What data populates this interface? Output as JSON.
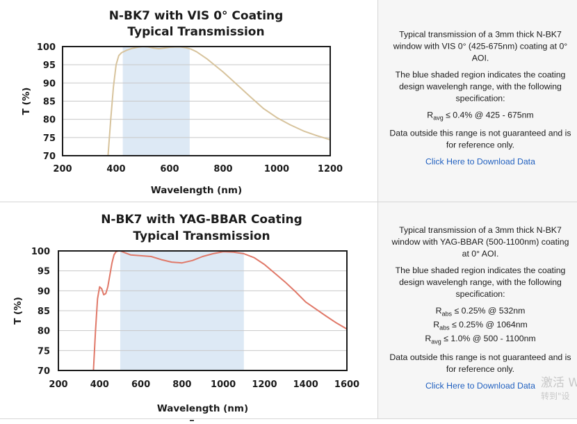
{
  "chart_data": [
    {
      "type": "line",
      "title": "N-BK7 with VIS 0° Coating",
      "subtitle": "Typical Transmission",
      "xlabel": "Wavelength (nm)",
      "ylabel": "T (%)",
      "xlim": [
        200,
        1200
      ],
      "ylim": [
        70,
        100
      ],
      "xticks": [
        "200",
        "400",
        "600",
        "800",
        "1000",
        "1200"
      ],
      "yticks": [
        "70",
        "75",
        "80",
        "85",
        "90",
        "95",
        "100"
      ],
      "grid": true,
      "shaded_range": [
        425,
        675
      ],
      "series": [
        {
          "color": "#d7c39c",
          "x": [
            370,
            380,
            390,
            400,
            410,
            420,
            440,
            460,
            480,
            500,
            520,
            540,
            560,
            580,
            600,
            620,
            640,
            660,
            680,
            700,
            720,
            740,
            760,
            780,
            800,
            830,
            860,
            900,
            950,
            1000,
            1050,
            1100,
            1150,
            1200
          ],
          "y": [
            70,
            80,
            89,
            95,
            97.5,
            98.3,
            99,
            99.5,
            99.8,
            100,
            99.9,
            99.6,
            99.4,
            99.6,
            99.8,
            99.9,
            99.9,
            99.7,
            99.3,
            98.6,
            97.6,
            96.6,
            95.4,
            94.2,
            93,
            91,
            89,
            86.3,
            83,
            80.5,
            78.5,
            76.8,
            75.5,
            74.4
          ]
        }
      ]
    },
    {
      "type": "line",
      "title": "N-BK7 with YAG-BBAR Coating",
      "subtitle": "Typical Transmission",
      "xlabel": "Wavelength (nm)",
      "ylabel": "T (%)",
      "xlim": [
        200,
        1600
      ],
      "ylim": [
        70,
        100
      ],
      "xticks": [
        "200",
        "400",
        "600",
        "800",
        "1000",
        "1200",
        "1400",
        "1600"
      ],
      "yticks": [
        "70",
        "75",
        "80",
        "85",
        "90",
        "95",
        "100"
      ],
      "grid": true,
      "shaded_range": [
        500,
        1100
      ],
      "series": [
        {
          "color": "#e07868",
          "x": [
            370,
            380,
            390,
            400,
            410,
            420,
            430,
            440,
            450,
            460,
            470,
            480,
            490,
            500,
            520,
            550,
            600,
            650,
            700,
            750,
            800,
            850,
            900,
            950,
            1000,
            1050,
            1100,
            1150,
            1200,
            1250,
            1300,
            1350,
            1400,
            1450,
            1500,
            1550,
            1600
          ],
          "y": [
            70,
            80,
            88,
            91,
            90.5,
            89,
            89.3,
            91,
            94,
            97,
            99,
            99.8,
            100,
            100,
            99.6,
            99,
            98.8,
            98.6,
            97.8,
            97.2,
            97,
            97.6,
            98.6,
            99.3,
            99.8,
            99.7,
            99.3,
            98.3,
            96.6,
            94.4,
            92.2,
            89.8,
            87.2,
            85.4,
            83.6,
            81.9,
            80.4
          ]
        }
      ]
    }
  ],
  "info_blocks": [
    {
      "description": "Typical transmission of a 3mm thick N-BK7 window with VIS 0° (425-675nm) coating at 0° AOI.",
      "shaded_note": "The blue shaded region indicates the coating design wavelengh range, with the following specification:",
      "specs": [
        {
          "symbol": "R",
          "sub": "avg",
          "text": "≤ 0.4% @ 425 - 675nm"
        }
      ],
      "disclaimer": "Data outside this range is not guaranteed and is for reference only.",
      "link": "Click Here to Download Data"
    },
    {
      "description": "Typical transmission of a 3mm thick N-BK7 window with YAG-BBAR (500-1100nm) coating at 0° AOI.",
      "shaded_note": "The blue shaded region indicates the coating design wavelengh range, with the following specification:",
      "specs": [
        {
          "symbol": "R",
          "sub": "abs",
          "text": "≤ 0.25% @ 532nm"
        },
        {
          "symbol": "R",
          "sub": "abs",
          "text": "≤ 0.25% @ 1064nm"
        },
        {
          "symbol": "R",
          "sub": "avg",
          "text": "≤ 1.0% @ 500 - 1100nm"
        }
      ],
      "disclaimer": "Data outside this range is not guaranteed and is for reference only.",
      "link": "Click Here to Download Data"
    }
  ],
  "watermark": {
    "line1": "激活 W",
    "line2": "转到\"设"
  },
  "colors": {
    "shade": "#dde9f5",
    "grid": "#c8c8c8",
    "frame": "#1a1a1a",
    "link": "#1f5fbf"
  }
}
